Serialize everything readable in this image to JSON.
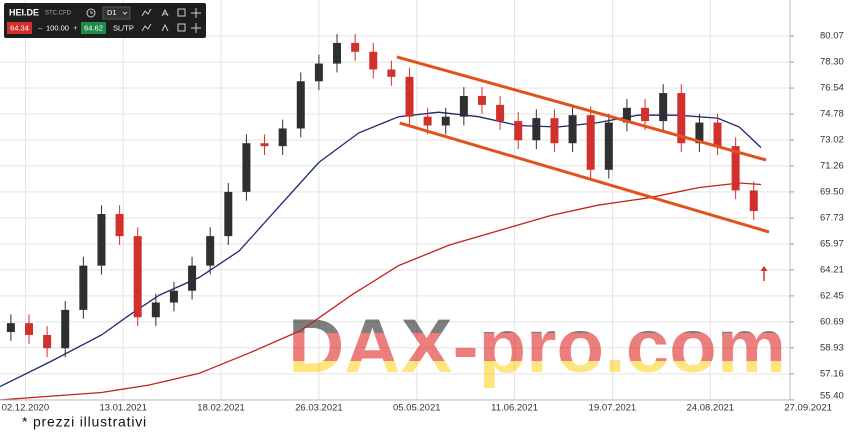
{
  "toolbar": {
    "symbol": "HEI.DE",
    "instrument": "STC.CFD",
    "timeframe": "D1",
    "bid": "64.34",
    "volume": "100.00",
    "ask": "64.62",
    "sltp": "SL/TP"
  },
  "watermark": "DAX-pro.com",
  "footer": "* prezzi illustrativi",
  "chart_data": {
    "type": "candlestick",
    "x": [
      -4,
      1,
      6,
      11,
      16,
      21,
      26,
      31,
      36,
      41,
      46,
      51,
      56,
      61,
      66,
      71,
      76,
      81,
      86,
      91,
      96,
      101,
      106,
      111,
      116,
      121,
      126,
      131,
      136,
      141,
      146,
      151,
      156,
      161,
      166,
      171,
      176,
      181,
      186,
      191,
      196,
      201
    ],
    "open": [
      60.0,
      60.6,
      59.8,
      58.9,
      61.5,
      64.5,
      68.0,
      66.5,
      61.0,
      62.0,
      62.8,
      64.5,
      66.5,
      69.5,
      72.8,
      72.6,
      73.8,
      77.0,
      78.2,
      79.6,
      79.0,
      77.8,
      77.3,
      74.6,
      74.0,
      74.6,
      76.0,
      75.4,
      74.3,
      73.0,
      74.5,
      72.8,
      74.7,
      71.0,
      74.2,
      75.2,
      74.3,
      76.2,
      72.8,
      74.2,
      72.6,
      69.6
    ],
    "high": [
      61.2,
      61.2,
      60.4,
      62.1,
      65.1,
      68.6,
      68.6,
      67.1,
      62.6,
      63.4,
      65.1,
      67.1,
      70.1,
      73.4,
      73.4,
      74.4,
      77.6,
      78.8,
      80.2,
      80.2,
      79.6,
      78.4,
      77.9,
      75.2,
      75.2,
      76.6,
      76.6,
      76.0,
      74.9,
      75.1,
      75.1,
      75.3,
      75.3,
      74.8,
      75.8,
      75.8,
      76.8,
      76.8,
      74.8,
      74.8,
      73.2,
      70.2
    ],
    "low": [
      59.4,
      59.2,
      58.3,
      58.3,
      60.9,
      63.9,
      65.9,
      60.4,
      60.4,
      61.4,
      62.2,
      63.9,
      65.9,
      68.9,
      72.0,
      72.0,
      73.2,
      76.4,
      77.6,
      78.4,
      77.2,
      76.7,
      74.0,
      73.4,
      73.4,
      74.0,
      74.8,
      73.7,
      72.4,
      72.4,
      72.2,
      72.2,
      70.4,
      70.4,
      73.6,
      73.7,
      73.7,
      72.2,
      72.2,
      72.0,
      69.0,
      67.6
    ],
    "close": [
      60.6,
      59.8,
      58.9,
      61.5,
      64.5,
      68.0,
      66.5,
      61.0,
      62.0,
      62.8,
      64.5,
      66.5,
      69.5,
      72.8,
      72.6,
      73.8,
      77.0,
      78.2,
      79.6,
      79.0,
      77.8,
      77.3,
      74.6,
      74.0,
      74.6,
      76.0,
      75.4,
      74.3,
      73.0,
      74.5,
      72.8,
      74.7,
      71.0,
      74.2,
      75.2,
      74.3,
      76.2,
      72.8,
      74.2,
      72.6,
      69.6,
      68.2
    ],
    "up_color": "#2f2f2f",
    "down_color": "#d0312d",
    "overlays": [
      {
        "color": "#1b2a6b",
        "x": [
          -7,
          7,
          21,
          29,
          37,
          48,
          59,
          70,
          81,
          92,
          103,
          114,
          125,
          136,
          147,
          158,
          169,
          180,
          191,
          197,
          203
        ],
        "values": [
          56.3,
          58.0,
          59.8,
          61.2,
          62.5,
          63.7,
          65.5,
          68.5,
          71.5,
          73.5,
          74.6,
          74.9,
          74.6,
          74.0,
          73.9,
          74.2,
          74.7,
          74.7,
          74.5,
          73.9,
          72.5
        ]
      },
      {
        "color": "#c0241c",
        "x": [
          -7,
          21,
          34,
          48,
          62,
          76,
          90,
          103,
          117,
          131,
          145,
          158,
          172,
          186,
          197,
          203
        ],
        "values": [
          55.4,
          55.9,
          56.4,
          57.2,
          58.6,
          60.1,
          62.5,
          64.5,
          65.9,
          66.9,
          67.9,
          68.6,
          69.1,
          69.8,
          70.1,
          70.0
        ]
      }
    ],
    "trendlines": [
      {
        "color": "#e0531f",
        "x": [
          102.5,
          204.4
        ],
        "values": [
          78.65,
          71.66
        ]
      },
      {
        "color": "#e0531f",
        "x": [
          103.3,
          205.2
        ],
        "values": [
          74.17,
          66.78
        ]
      }
    ],
    "xlim": [
      -7,
      211
    ],
    "xticks": [
      {
        "value": 0,
        "label": "02.12.2020"
      },
      {
        "value": 27,
        "label": "13.01.2021"
      },
      {
        "value": 54,
        "label": "18.02.2021"
      },
      {
        "value": 81,
        "label": "26.03.2021"
      },
      {
        "value": 108,
        "label": "05.05.2021"
      },
      {
        "value": 135,
        "label": "11.06.2021"
      },
      {
        "value": 162,
        "label": "19.07.2021"
      },
      {
        "value": 189,
        "label": "24.08.2021"
      },
      {
        "value": 216,
        "label": "27.09.2021"
      }
    ],
    "ylim": [
      55.39,
      82.51
    ],
    "yticks": [
      80.07,
      {
        "value": 78.3,
        "label": "78.30"
      },
      76.54,
      74.78,
      73.02,
      71.26,
      {
        "value": 69.5,
        "label": "69.50"
      },
      67.73,
      65.97,
      64.21,
      62.45,
      60.69,
      58.93,
      57.16,
      {
        "value": 55.4,
        "label": "55.40"
      }
    ],
    "grid": true
  }
}
